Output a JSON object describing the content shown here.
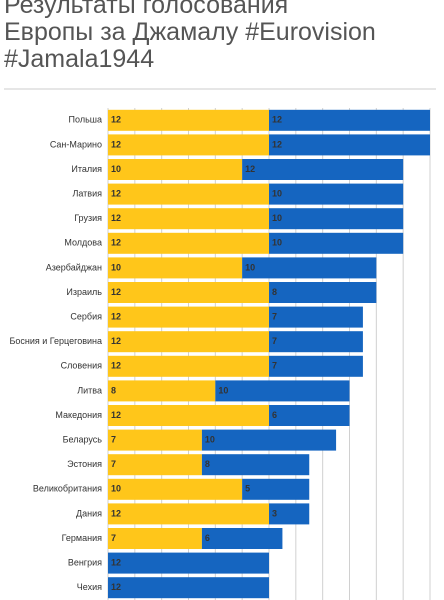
{
  "chart_data": {
    "type": "stacked-bar-horizontal",
    "title": "Результаты голосования\nЕвропы за Джамалу #Eurovision\n#Jamala1944",
    "categories": [
      "Польша",
      "Сан-Марино",
      "Италия",
      "Латвия",
      "Грузия",
      "Молдова",
      "Азербайджан",
      "Израиль",
      "Сербия",
      "Босния и Герцеговина",
      "Словения",
      "Литва",
      "Македония",
      "Беларусь",
      "Эстония",
      "Великобритания",
      "Дания",
      "Германия",
      "Венгрия",
      "Чехия"
    ],
    "series": [
      {
        "color": "#ffc61a",
        "values": [
          12,
          12,
          10,
          12,
          12,
          12,
          10,
          12,
          12,
          12,
          12,
          8,
          12,
          7,
          7,
          10,
          12,
          7,
          null,
          null
        ]
      },
      {
        "color": "#1565c0",
        "values": [
          12,
          12,
          12,
          10,
          10,
          10,
          10,
          8,
          7,
          7,
          7,
          10,
          6,
          10,
          8,
          5,
          3,
          6,
          12,
          12
        ]
      }
    ],
    "xlim": [
      0,
      24
    ],
    "xticks": [
      0,
      2,
      4,
      6,
      8,
      10,
      12,
      14,
      16,
      18,
      20,
      22,
      24
    ],
    "grid": true
  }
}
